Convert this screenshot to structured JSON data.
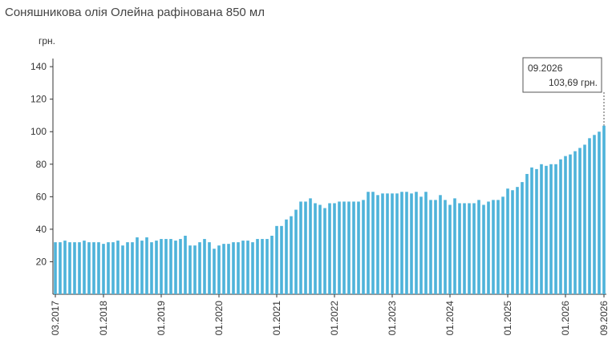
{
  "chart_data": {
    "type": "bar",
    "title": "Соняшникова олія Олейна рафінована 850 мл",
    "y_label": "грн.",
    "categories": [
      "03.2017",
      null,
      null,
      null,
      null,
      null,
      null,
      null,
      null,
      null,
      "01.2018",
      null,
      null,
      null,
      null,
      null,
      null,
      null,
      null,
      null,
      null,
      null,
      "01.2019",
      null,
      null,
      null,
      null,
      null,
      null,
      null,
      null,
      null,
      null,
      null,
      "01.2020",
      null,
      null,
      null,
      null,
      null,
      null,
      null,
      null,
      null,
      null,
      null,
      "01.2021",
      null,
      null,
      null,
      null,
      null,
      null,
      null,
      null,
      null,
      null,
      null,
      "01.2022",
      null,
      null,
      null,
      null,
      null,
      null,
      null,
      null,
      null,
      null,
      null,
      "01.2023",
      null,
      null,
      null,
      null,
      null,
      null,
      null,
      null,
      null,
      null,
      null,
      "01.2024",
      null,
      null,
      null,
      null,
      null,
      null,
      null,
      null,
      null,
      null,
      null,
      "01.2025",
      null,
      null,
      null,
      null,
      null,
      null,
      null,
      null,
      null,
      null,
      null,
      "01.2026",
      null,
      null,
      null,
      null,
      null,
      null,
      null,
      "09.2026"
    ],
    "values": [
      32,
      32,
      33,
      32,
      32,
      32,
      33,
      32,
      32,
      32,
      31,
      32,
      32,
      33,
      30,
      32,
      32,
      35,
      33,
      35,
      32,
      33,
      34,
      34,
      34,
      33,
      34,
      36,
      30,
      30,
      32,
      34,
      32,
      28,
      30,
      31,
      31,
      32,
      32,
      33,
      33,
      32,
      34,
      34,
      34,
      36,
      42,
      42,
      46,
      48,
      52,
      57,
      57,
      59,
      56,
      55,
      53,
      56,
      56,
      57,
      57,
      57,
      57,
      57,
      58,
      63,
      63,
      61,
      62,
      62,
      62,
      62,
      63,
      63,
      62,
      63,
      60,
      63,
      58,
      58,
      61,
      58,
      55,
      59,
      56,
      56,
      56,
      56,
      58,
      55,
      57,
      58,
      58,
      60,
      65,
      64,
      66,
      69,
      74,
      78,
      77,
      80,
      79,
      80,
      80,
      83,
      85,
      86,
      88,
      90,
      92,
      96,
      98,
      100,
      103.69
    ],
    "color": "#4eb3da",
    "ylim": [
      0,
      145
    ],
    "yticks": [
      20,
      40,
      60,
      80,
      100,
      120,
      140
    ],
    "annotation": {
      "date": "09.2026",
      "text": "103,69 грн."
    }
  }
}
